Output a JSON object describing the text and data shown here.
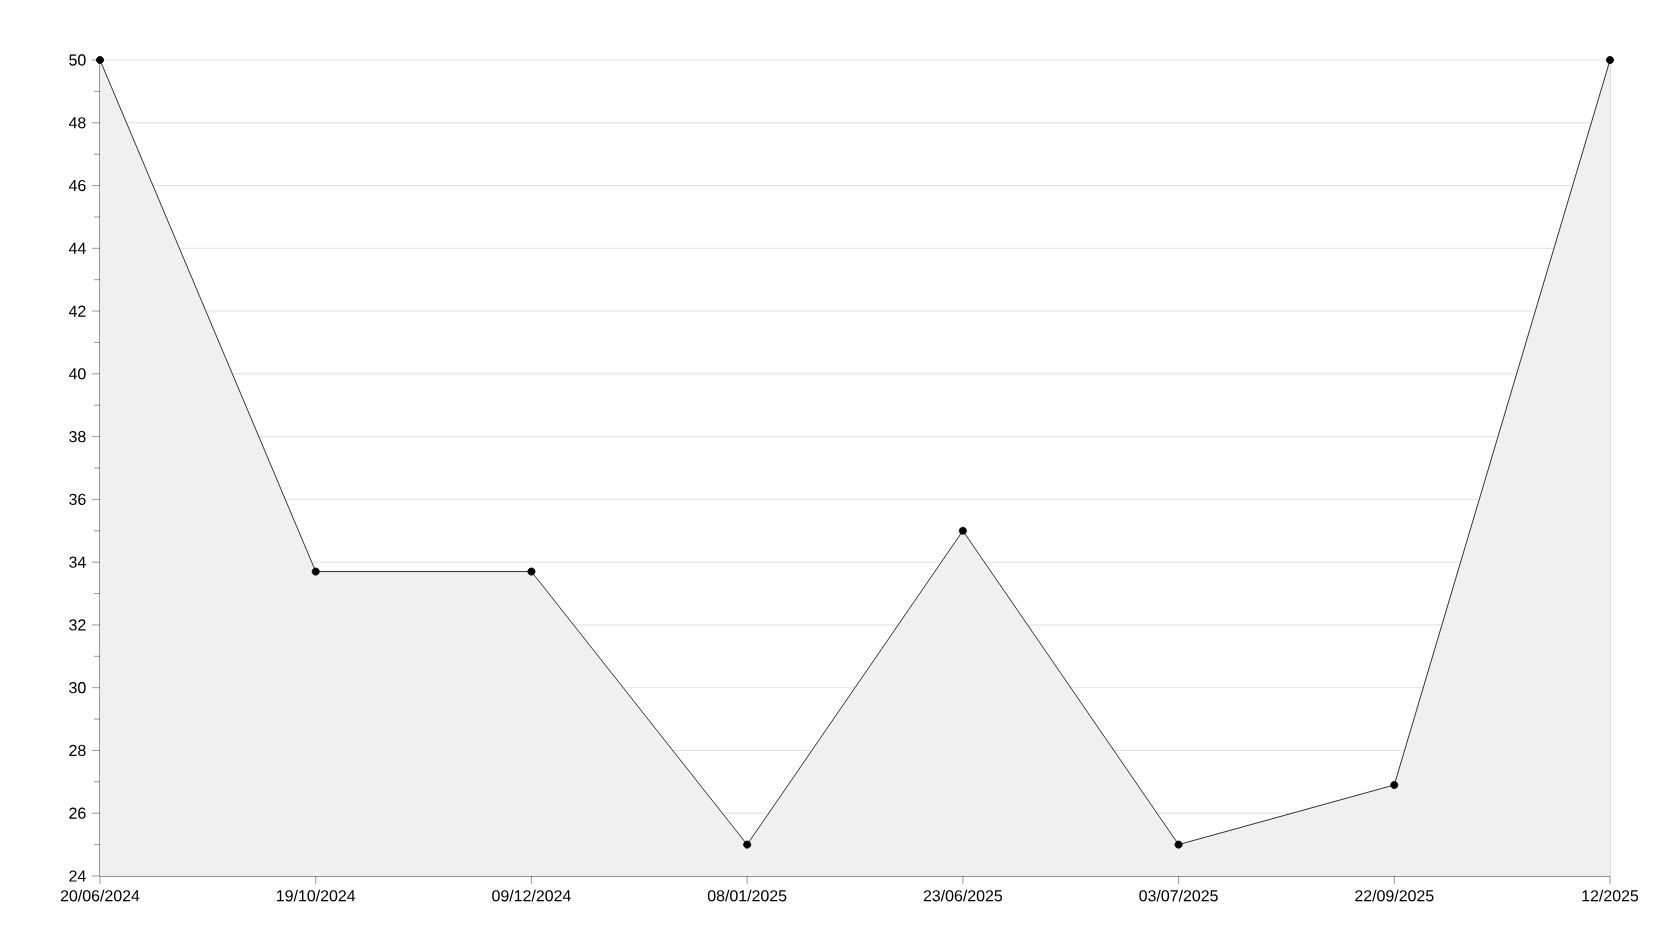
{
  "chart_data": {
    "type": "area",
    "categories": [
      "20/06/2024",
      "19/10/2024",
      "09/12/2024",
      "08/01/2025",
      "23/06/2025",
      "03/07/2025",
      "22/09/2025",
      "12/2025"
    ],
    "series": [
      {
        "color": "#000000",
        "values": [
          50,
          33.7,
          33.7,
          25,
          35,
          25,
          26.9,
          50
        ]
      }
    ],
    "ylim": [
      24,
      50
    ],
    "yticks": [
      24,
      26,
      28,
      30,
      32,
      34,
      36,
      38,
      40,
      42,
      44,
      46,
      48,
      50
    ],
    "grid": "y",
    "marker": "circle",
    "line_style": "solid"
  }
}
